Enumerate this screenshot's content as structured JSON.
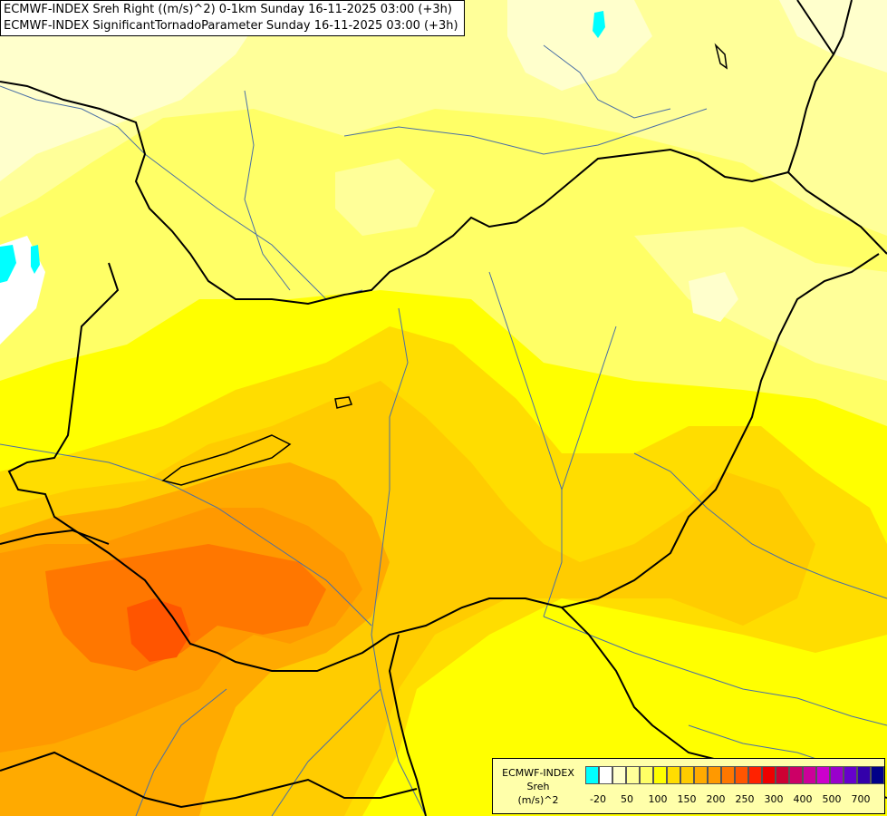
{
  "title_lines": [
    "ECMWF-INDEX Sreh Right ((m/s)^2) 0-1km Sunday 16-11-2025 03:00 (+3h)",
    "ECMWF-INDEX SignificantTornadoParameter Sunday 16-11-2025 03:00 (+3h)"
  ],
  "legend": {
    "line1": "ECMWF-INDEX",
    "line2": "Sreh",
    "line3": "(m/s)^2",
    "swatch_colors": [
      "#00ffff",
      "#ffffff",
      "#ffffcc",
      "#ffff99",
      "#ffff66",
      "#ffff00",
      "#ffdd00",
      "#ffcc00",
      "#ffaa00",
      "#ff9900",
      "#ff7700",
      "#ff5500",
      "#ff2200",
      "#ee0000",
      "#cc0033",
      "#cc0066",
      "#cc0099",
      "#cc00cc",
      "#9900cc",
      "#6600cc",
      "#3300aa",
      "#000088"
    ],
    "tick_labels": [
      "-20",
      "50",
      "100",
      "150",
      "200",
      "250",
      "300",
      "400",
      "500",
      "700"
    ]
  },
  "colors": {
    "background": "#ffff66",
    "border_line": "#000000",
    "river_line": "#4a6fa5"
  }
}
